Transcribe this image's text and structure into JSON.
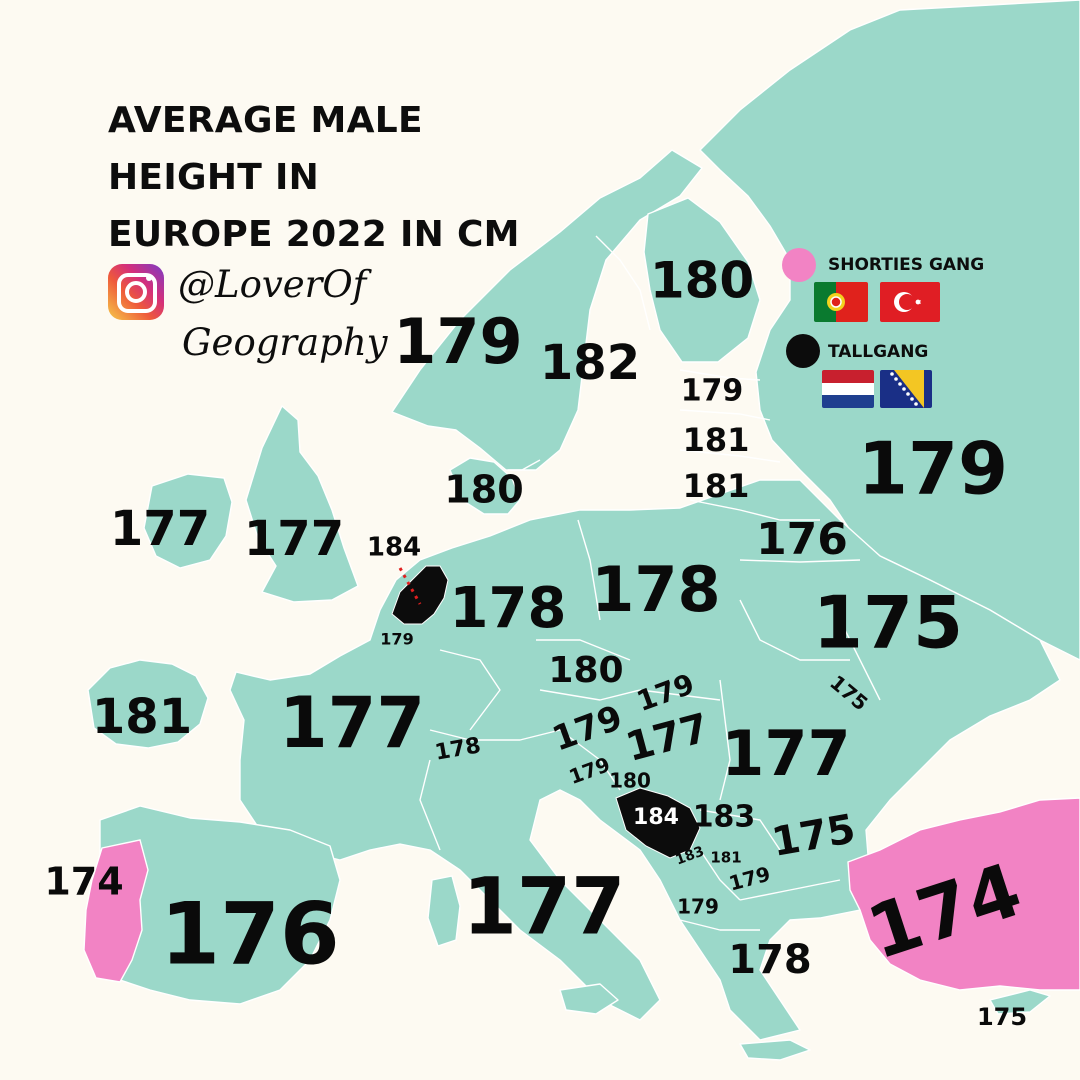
{
  "title": {
    "line1": "AVERAGE MALE",
    "line2": "HEIGHT IN",
    "line3": "EUROPE 2022 IN CM"
  },
  "credit": {
    "icon": "instagram-icon",
    "handle_line1": "@LoverOf",
    "handle_line2": "Geography"
  },
  "legend": {
    "shorties": {
      "label": "SHORTIES GANG",
      "color": "#f283c4",
      "flags": [
        "portugal-flag",
        "turkey-flag"
      ]
    },
    "tall": {
      "label": "TALLGANG",
      "color": "#0c0c0c",
      "flags": [
        "netherlands-flag",
        "bosnia-flag"
      ]
    }
  },
  "colors": {
    "land": "#9bd8c9",
    "sea": "#fdfaf2",
    "shorties": "#f283c4",
    "tallest": "#0c0c0c",
    "borders": "#ffffff"
  },
  "country_heights": [
    {
      "country": "norway",
      "value": "179"
    },
    {
      "country": "sweden",
      "value": "182"
    },
    {
      "country": "finland",
      "value": "180"
    },
    {
      "country": "estonia",
      "value": "179"
    },
    {
      "country": "latvia",
      "value": "181"
    },
    {
      "country": "lithuania",
      "value": "181"
    },
    {
      "country": "russia",
      "value": "179"
    },
    {
      "country": "belarus",
      "value": "176"
    },
    {
      "country": "ukraine",
      "value": "175"
    },
    {
      "country": "moldova",
      "value": "175"
    },
    {
      "country": "iceland",
      "value": "181"
    },
    {
      "country": "ireland",
      "value": "177"
    },
    {
      "country": "united-kingdom",
      "value": "177"
    },
    {
      "country": "denmark",
      "value": "180"
    },
    {
      "country": "netherlands",
      "value": "184"
    },
    {
      "country": "belgium",
      "value": "179"
    },
    {
      "country": "germany",
      "value": "178"
    },
    {
      "country": "poland",
      "value": "178"
    },
    {
      "country": "czechia",
      "value": "180"
    },
    {
      "country": "slovakia",
      "value": "179"
    },
    {
      "country": "austria",
      "value": "179"
    },
    {
      "country": "hungary",
      "value": "177"
    },
    {
      "country": "romania",
      "value": "177"
    },
    {
      "country": "switzerland",
      "value": "178"
    },
    {
      "country": "slovenia",
      "value": "179"
    },
    {
      "country": "croatia",
      "value": "180"
    },
    {
      "country": "bosnia-and-herzegovina",
      "value": "184"
    },
    {
      "country": "serbia",
      "value": "183"
    },
    {
      "country": "montenegro",
      "value": "183"
    },
    {
      "country": "kosovo",
      "value": "181"
    },
    {
      "country": "north-macedonia",
      "value": "179"
    },
    {
      "country": "albania",
      "value": "179"
    },
    {
      "country": "bulgaria",
      "value": "175"
    },
    {
      "country": "greece",
      "value": "178"
    },
    {
      "country": "turkey",
      "value": "174"
    },
    {
      "country": "cyprus",
      "value": "175"
    },
    {
      "country": "france",
      "value": "177"
    },
    {
      "country": "italy",
      "value": "177"
    },
    {
      "country": "spain",
      "value": "176"
    },
    {
      "country": "portugal",
      "value": "174"
    }
  ]
}
